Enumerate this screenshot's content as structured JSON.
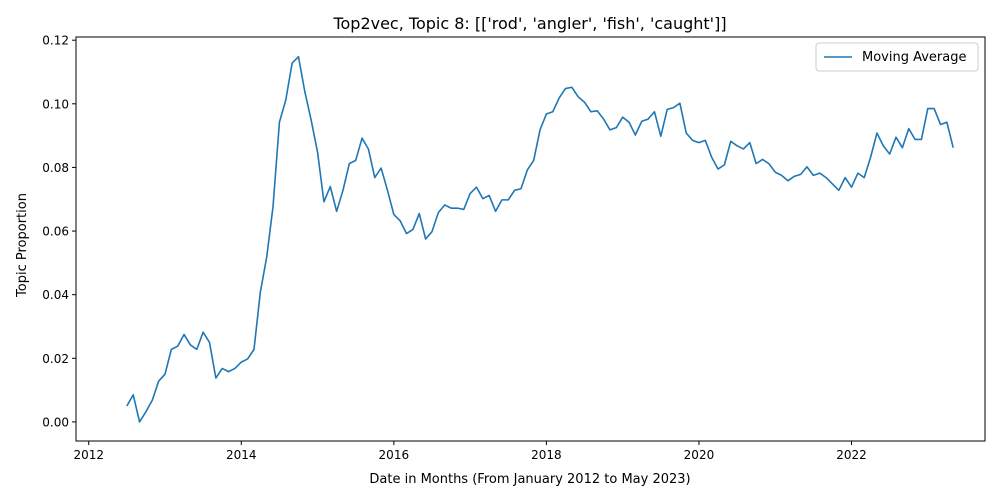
{
  "chart_data": {
    "type": "line",
    "title": "Top2vec, Topic 8: [['rod', 'angler', 'fish', 'caught']]",
    "xlabel": "Date in Months (From January 2012 to May 2023)",
    "ylabel": "Topic Proportion",
    "xlim": [
      "2011-11",
      "2023-10"
    ],
    "ylim": [
      -0.006,
      0.121
    ],
    "x_ticks": [
      "2012",
      "2014",
      "2016",
      "2018",
      "2020",
      "2022"
    ],
    "y_ticks": [
      "0.00",
      "0.02",
      "0.04",
      "0.06",
      "0.08",
      "0.10",
      "0.12"
    ],
    "legend": "upper right",
    "grid": false,
    "series": [
      {
        "name": "Moving Average",
        "color": "#1f77b4",
        "x": [
          "2012-07",
          "2012-08",
          "2012-09",
          "2012-10",
          "2012-11",
          "2012-12",
          "2013-01",
          "2013-02",
          "2013-03",
          "2013-04",
          "2013-05",
          "2013-06",
          "2013-07",
          "2013-08",
          "2013-09",
          "2013-10",
          "2013-11",
          "2013-12",
          "2014-01",
          "2014-02",
          "2014-03",
          "2014-04",
          "2014-05",
          "2014-06",
          "2014-07",
          "2014-08",
          "2014-09",
          "2014-10",
          "2014-11",
          "2014-12",
          "2015-01",
          "2015-02",
          "2015-03",
          "2015-04",
          "2015-05",
          "2015-06",
          "2015-07",
          "2015-08",
          "2015-09",
          "2015-10",
          "2015-11",
          "2015-12",
          "2016-01",
          "2016-02",
          "2016-03",
          "2016-04",
          "2016-05",
          "2016-06",
          "2016-07",
          "2016-08",
          "2016-09",
          "2016-10",
          "2016-11",
          "2016-12",
          "2017-01",
          "2017-02",
          "2017-03",
          "2017-04",
          "2017-05",
          "2017-06",
          "2017-07",
          "2017-08",
          "2017-09",
          "2017-10",
          "2017-11",
          "2017-12",
          "2018-01",
          "2018-02",
          "2018-03",
          "2018-04",
          "2018-05",
          "2018-06",
          "2018-07",
          "2018-08",
          "2018-09",
          "2018-10",
          "2018-11",
          "2018-12",
          "2019-01",
          "2019-02",
          "2019-03",
          "2019-04",
          "2019-05",
          "2019-06",
          "2019-07",
          "2019-08",
          "2019-09",
          "2019-10",
          "2019-11",
          "2019-12",
          "2020-01",
          "2020-02",
          "2020-03",
          "2020-04",
          "2020-05",
          "2020-06",
          "2020-07",
          "2020-08",
          "2020-09",
          "2020-10",
          "2020-11",
          "2020-12",
          "2021-01",
          "2021-02",
          "2021-03",
          "2021-04",
          "2021-05",
          "2021-06",
          "2021-07",
          "2021-08",
          "2021-09",
          "2021-10",
          "2021-11",
          "2021-12",
          "2022-01",
          "2022-02",
          "2022-03",
          "2022-04",
          "2022-05",
          "2022-06",
          "2022-07",
          "2022-08",
          "2022-09",
          "2022-10",
          "2022-11",
          "2022-12",
          "2023-01",
          "2023-02",
          "2023-03",
          "2023-04",
          "2023-05"
        ],
        "y": [
          0.005,
          0.0085,
          0.0,
          0.0032,
          0.0068,
          0.0128,
          0.015,
          0.0228,
          0.0238,
          0.0275,
          0.0242,
          0.0228,
          0.0282,
          0.025,
          0.0138,
          0.0168,
          0.0158,
          0.0168,
          0.0188,
          0.0198,
          0.0228,
          0.0408,
          0.0518,
          0.0678,
          0.0942,
          0.1012,
          0.1128,
          0.1148,
          0.1038,
          0.0948,
          0.0848,
          0.0692,
          0.074,
          0.0662,
          0.0728,
          0.0812,
          0.0822,
          0.0892,
          0.0858,
          0.0768,
          0.0798,
          0.0728,
          0.0652,
          0.0632,
          0.0592,
          0.0605,
          0.0655,
          0.0575,
          0.0598,
          0.0658,
          0.0682,
          0.0672,
          0.0672,
          0.0668,
          0.0718,
          0.0738,
          0.0702,
          0.0712,
          0.0662,
          0.0698,
          0.0698,
          0.0728,
          0.0733,
          0.0792,
          0.0822,
          0.0918,
          0.0968,
          0.0975,
          0.1018,
          0.1048,
          0.1052,
          0.1022,
          0.1005,
          0.0975,
          0.0978,
          0.0952,
          0.0918,
          0.0925,
          0.0958,
          0.0942,
          0.0902,
          0.0945,
          0.0952,
          0.0975,
          0.0898,
          0.0982,
          0.0988,
          0.1002,
          0.0908,
          0.0885,
          0.0878,
          0.0885,
          0.0832,
          0.0795,
          0.0808,
          0.0882,
          0.0868,
          0.0858,
          0.0878,
          0.0812,
          0.0825,
          0.0812,
          0.0785,
          0.0775,
          0.0758,
          0.0772,
          0.0778,
          0.0802,
          0.0775,
          0.0782,
          0.0768,
          0.0748,
          0.0728,
          0.0768,
          0.0738,
          0.0782,
          0.0768,
          0.0832,
          0.0908,
          0.0868,
          0.0842,
          0.0895,
          0.0862,
          0.0922,
          0.0888,
          0.0888,
          0.0985,
          0.0985,
          0.0935,
          0.0942,
          0.0862
        ]
      }
    ]
  }
}
